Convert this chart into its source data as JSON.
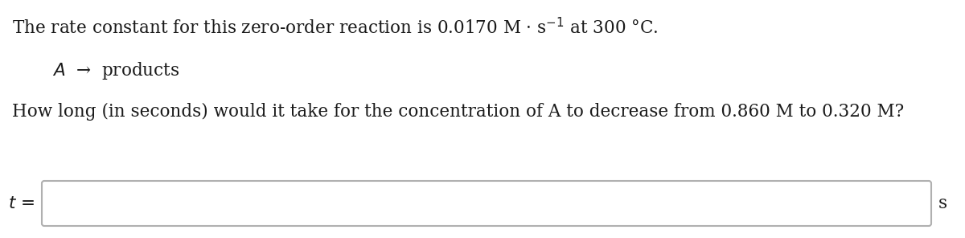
{
  "line1_part1": "The rate constant for this zero-order reaction is 0.0170 M · s",
  "line1_sup": "-1",
  "line1_part2": " at 300 °C.",
  "line2": "A → products",
  "line3": "How long (in seconds) would it take for the concentration of A to decrease from 0.860 M to 0.320 M?",
  "label_t": "t =",
  "label_s": "s",
  "bg_color": "#ffffff",
  "text_color": "#1a1a1a",
  "font_size_main": 15.5,
  "font_size_sup": 10.5,
  "box_edge_color": "#b0b0b0",
  "box_face_color": "#ffffff"
}
